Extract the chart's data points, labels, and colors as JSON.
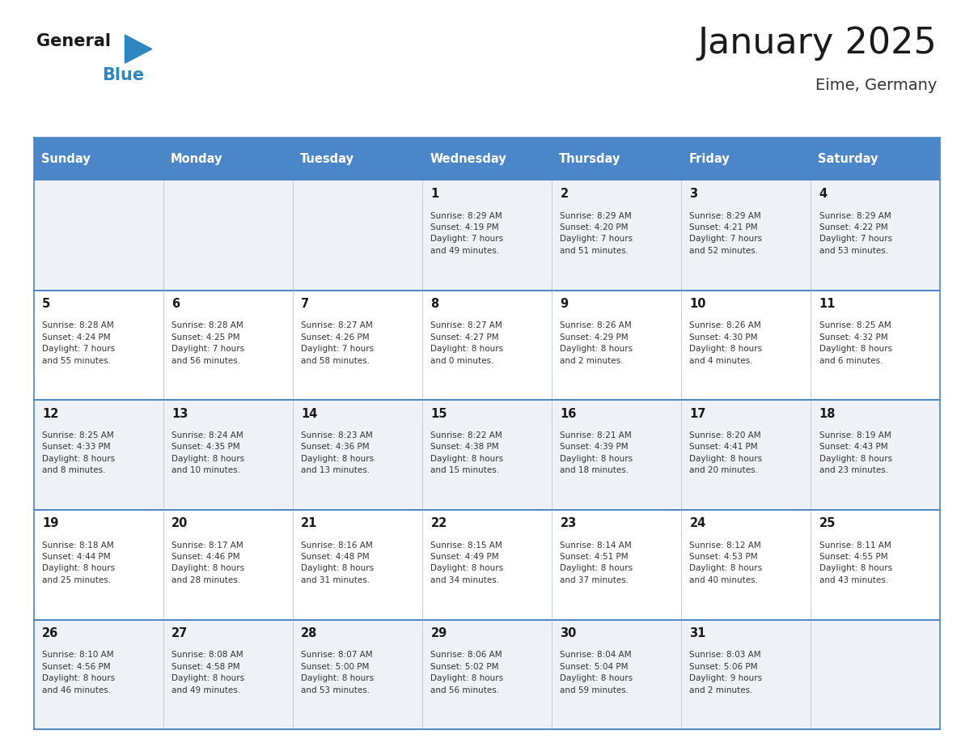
{
  "title": "January 2025",
  "subtitle": "Eime, Germany",
  "header_bg_color": "#4a86c8",
  "header_text_color": "#ffffff",
  "row_bg_light": "#eef2f7",
  "row_bg_white": "#ffffff",
  "border_color": "#4a86c8",
  "sep_line_color": "#4a86c8",
  "day_names": [
    "Sunday",
    "Monday",
    "Tuesday",
    "Wednesday",
    "Thursday",
    "Friday",
    "Saturday"
  ],
  "title_color": "#1a1a1a",
  "subtitle_color": "#333333",
  "day_number_color": "#1a1a1a",
  "cell_text_color": "#333333",
  "logo_black": "#1a1a1a",
  "logo_blue": "#2e86c1",
  "weeks": [
    [
      {
        "day": null,
        "info": null
      },
      {
        "day": null,
        "info": null
      },
      {
        "day": null,
        "info": null
      },
      {
        "day": 1,
        "info": "Sunrise: 8:29 AM\nSunset: 4:19 PM\nDaylight: 7 hours\nand 49 minutes."
      },
      {
        "day": 2,
        "info": "Sunrise: 8:29 AM\nSunset: 4:20 PM\nDaylight: 7 hours\nand 51 minutes."
      },
      {
        "day": 3,
        "info": "Sunrise: 8:29 AM\nSunset: 4:21 PM\nDaylight: 7 hours\nand 52 minutes."
      },
      {
        "day": 4,
        "info": "Sunrise: 8:29 AM\nSunset: 4:22 PM\nDaylight: 7 hours\nand 53 minutes."
      }
    ],
    [
      {
        "day": 5,
        "info": "Sunrise: 8:28 AM\nSunset: 4:24 PM\nDaylight: 7 hours\nand 55 minutes."
      },
      {
        "day": 6,
        "info": "Sunrise: 8:28 AM\nSunset: 4:25 PM\nDaylight: 7 hours\nand 56 minutes."
      },
      {
        "day": 7,
        "info": "Sunrise: 8:27 AM\nSunset: 4:26 PM\nDaylight: 7 hours\nand 58 minutes."
      },
      {
        "day": 8,
        "info": "Sunrise: 8:27 AM\nSunset: 4:27 PM\nDaylight: 8 hours\nand 0 minutes."
      },
      {
        "day": 9,
        "info": "Sunrise: 8:26 AM\nSunset: 4:29 PM\nDaylight: 8 hours\nand 2 minutes."
      },
      {
        "day": 10,
        "info": "Sunrise: 8:26 AM\nSunset: 4:30 PM\nDaylight: 8 hours\nand 4 minutes."
      },
      {
        "day": 11,
        "info": "Sunrise: 8:25 AM\nSunset: 4:32 PM\nDaylight: 8 hours\nand 6 minutes."
      }
    ],
    [
      {
        "day": 12,
        "info": "Sunrise: 8:25 AM\nSunset: 4:33 PM\nDaylight: 8 hours\nand 8 minutes."
      },
      {
        "day": 13,
        "info": "Sunrise: 8:24 AM\nSunset: 4:35 PM\nDaylight: 8 hours\nand 10 minutes."
      },
      {
        "day": 14,
        "info": "Sunrise: 8:23 AM\nSunset: 4:36 PM\nDaylight: 8 hours\nand 13 minutes."
      },
      {
        "day": 15,
        "info": "Sunrise: 8:22 AM\nSunset: 4:38 PM\nDaylight: 8 hours\nand 15 minutes."
      },
      {
        "day": 16,
        "info": "Sunrise: 8:21 AM\nSunset: 4:39 PM\nDaylight: 8 hours\nand 18 minutes."
      },
      {
        "day": 17,
        "info": "Sunrise: 8:20 AM\nSunset: 4:41 PM\nDaylight: 8 hours\nand 20 minutes."
      },
      {
        "day": 18,
        "info": "Sunrise: 8:19 AM\nSunset: 4:43 PM\nDaylight: 8 hours\nand 23 minutes."
      }
    ],
    [
      {
        "day": 19,
        "info": "Sunrise: 8:18 AM\nSunset: 4:44 PM\nDaylight: 8 hours\nand 25 minutes."
      },
      {
        "day": 20,
        "info": "Sunrise: 8:17 AM\nSunset: 4:46 PM\nDaylight: 8 hours\nand 28 minutes."
      },
      {
        "day": 21,
        "info": "Sunrise: 8:16 AM\nSunset: 4:48 PM\nDaylight: 8 hours\nand 31 minutes."
      },
      {
        "day": 22,
        "info": "Sunrise: 8:15 AM\nSunset: 4:49 PM\nDaylight: 8 hours\nand 34 minutes."
      },
      {
        "day": 23,
        "info": "Sunrise: 8:14 AM\nSunset: 4:51 PM\nDaylight: 8 hours\nand 37 minutes."
      },
      {
        "day": 24,
        "info": "Sunrise: 8:12 AM\nSunset: 4:53 PM\nDaylight: 8 hours\nand 40 minutes."
      },
      {
        "day": 25,
        "info": "Sunrise: 8:11 AM\nSunset: 4:55 PM\nDaylight: 8 hours\nand 43 minutes."
      }
    ],
    [
      {
        "day": 26,
        "info": "Sunrise: 8:10 AM\nSunset: 4:56 PM\nDaylight: 8 hours\nand 46 minutes."
      },
      {
        "day": 27,
        "info": "Sunrise: 8:08 AM\nSunset: 4:58 PM\nDaylight: 8 hours\nand 49 minutes."
      },
      {
        "day": 28,
        "info": "Sunrise: 8:07 AM\nSunset: 5:00 PM\nDaylight: 8 hours\nand 53 minutes."
      },
      {
        "day": 29,
        "info": "Sunrise: 8:06 AM\nSunset: 5:02 PM\nDaylight: 8 hours\nand 56 minutes."
      },
      {
        "day": 30,
        "info": "Sunrise: 8:04 AM\nSunset: 5:04 PM\nDaylight: 8 hours\nand 59 minutes."
      },
      {
        "day": 31,
        "info": "Sunrise: 8:03 AM\nSunset: 5:06 PM\nDaylight: 9 hours\nand 2 minutes."
      },
      {
        "day": null,
        "info": null
      }
    ]
  ]
}
